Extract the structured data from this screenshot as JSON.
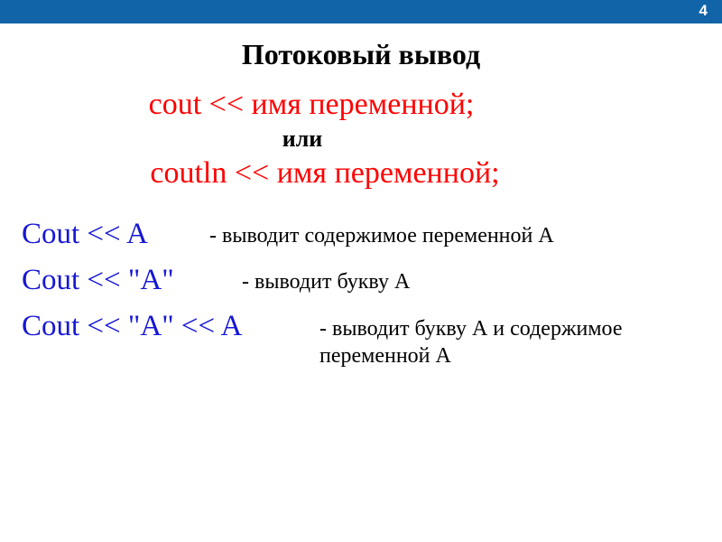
{
  "header": {
    "pageNumber": "4",
    "barColor": "#1164a8"
  },
  "title": "Потоковый вывод",
  "syntax": {
    "line1": "cout << имя переменной;",
    "or": "или",
    "line2": "coutln << имя переменной;"
  },
  "examples": [
    {
      "code": "Cout << A",
      "desc": "- выводит содержимое переменной А"
    },
    {
      "code": "Cout << \"A\"",
      "desc": "- выводит букву А"
    },
    {
      "code": "Cout << \"A\" << A",
      "desc": " - выводит букву А и содержимое переменной А"
    }
  ],
  "colors": {
    "red": "#ff0000",
    "blue": "#1616d6",
    "black": "#000000",
    "white": "#ffffff"
  }
}
